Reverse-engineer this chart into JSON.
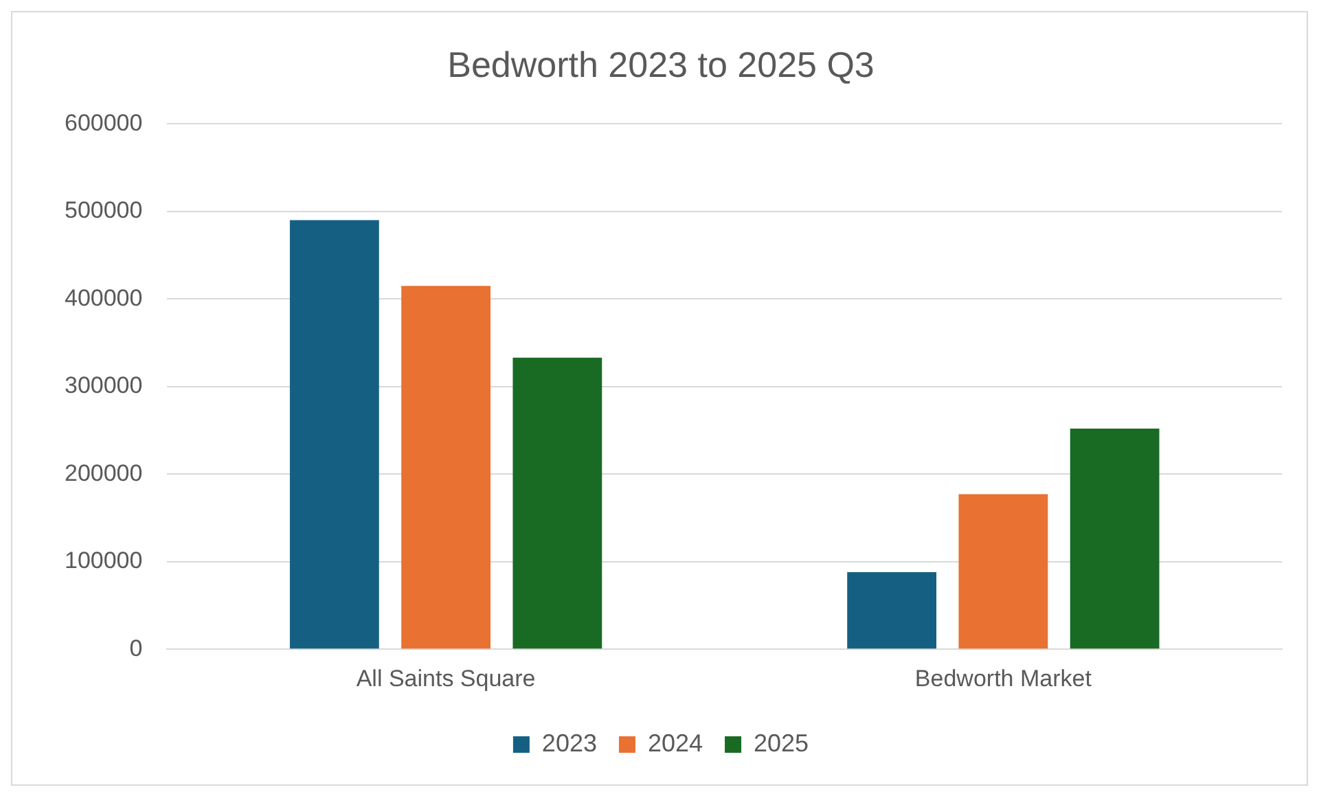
{
  "chart_data": {
    "type": "bar",
    "title": "Bedworth 2023 to 2025 Q3",
    "categories": [
      "All Saints Square",
      "Bedworth Market"
    ],
    "series": [
      {
        "name": "2023",
        "color": "#156082",
        "values": [
          490000,
          88000
        ]
      },
      {
        "name": "2024",
        "color": "#e97132",
        "values": [
          415000,
          177000
        ]
      },
      {
        "name": "2025",
        "color": "#196b24",
        "values": [
          333000,
          252000
        ]
      }
    ],
    "ylim": [
      0,
      600000
    ],
    "yticks": [
      0,
      100000,
      200000,
      300000,
      400000,
      500000,
      600000
    ],
    "grid": "y",
    "legend": "bottom"
  }
}
